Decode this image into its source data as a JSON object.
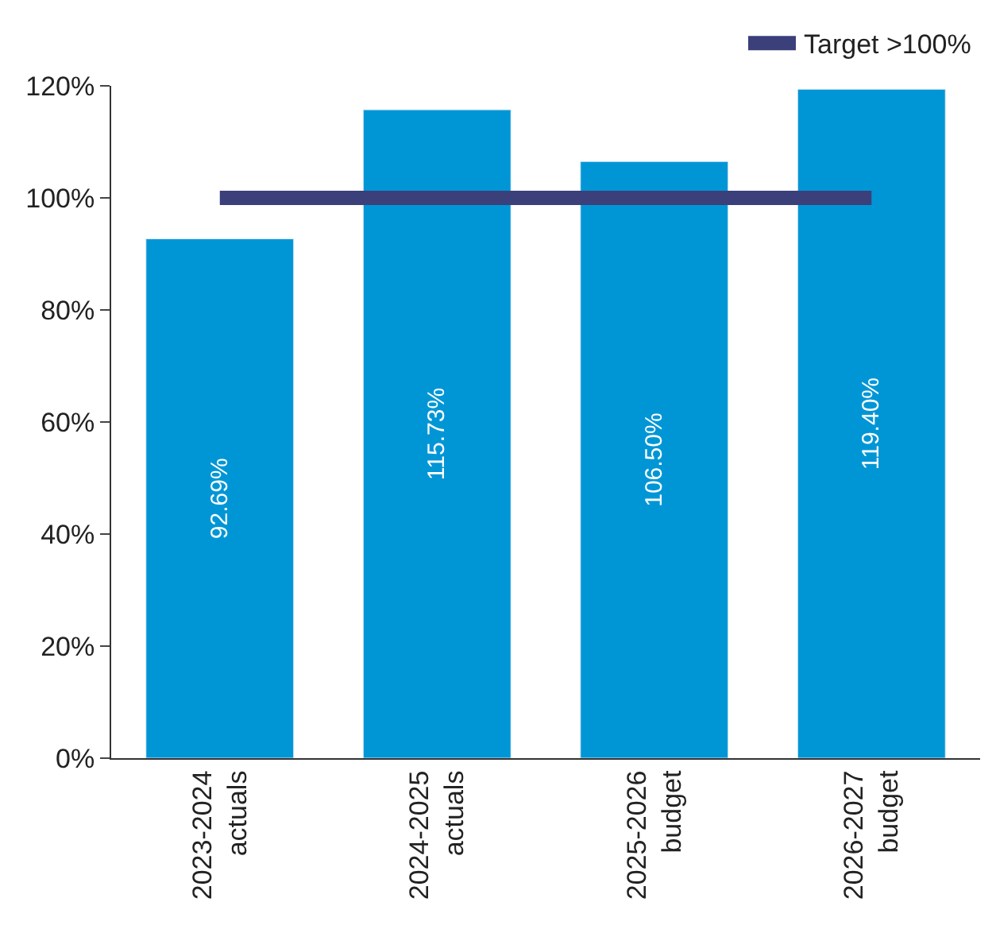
{
  "chart_data": {
    "type": "bar",
    "categories": [
      "2023-2024\nactuals",
      "2024-2025\nactuals",
      "2025-2026\nbudget",
      "2026-2027\nbudget"
    ],
    "series": [
      {
        "color": "#0096d6",
        "values": [
          92.69,
          115.73,
          106.5,
          119.4
        ],
        "value_labels": [
          "92.69%",
          "115.73%",
          "106.50%",
          "119.40%"
        ]
      },
      {
        "type": "line",
        "name": "Target >100%",
        "color": "#3b3f7a",
        "values": [
          100,
          100,
          100,
          100
        ]
      }
    ],
    "ylim": [
      0,
      120
    ],
    "yticks": [
      {
        "value": 0,
        "label": "0%"
      },
      {
        "value": 20,
        "label": "20%"
      },
      {
        "value": 40,
        "label": "40%"
      },
      {
        "value": 60,
        "label": "60%"
      },
      {
        "value": 80,
        "label": "80%"
      },
      {
        "value": 100,
        "label": "100%"
      },
      {
        "value": 120,
        "label": "120%"
      }
    ],
    "legend": "top right"
  }
}
